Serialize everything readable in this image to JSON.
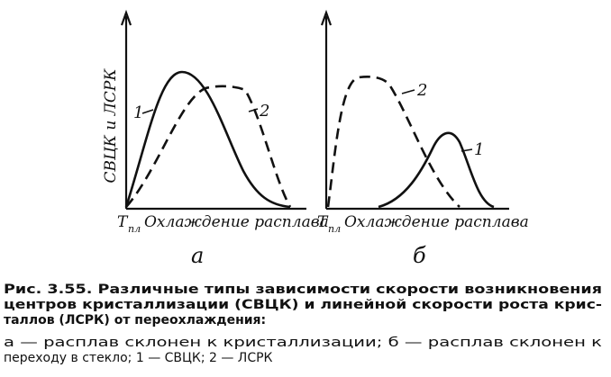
{
  "panels": [
    {
      "y_label": "СВЦК и ЛСРК",
      "x_symbol": "T",
      "x_subscript": "пл",
      "x_label": "Охлаждение расплава",
      "letter": "а",
      "curve_labels": [
        "1",
        "2"
      ]
    },
    {
      "x_symbol": "T",
      "x_subscript": "пл",
      "x_label": "Охлаждение расплава",
      "letter": "б",
      "curve_labels": [
        "2",
        "1"
      ]
    }
  ],
  "caption": {
    "title_lines": [
      "Рис. 3.55. Различные типы зависимости скорости возникновения",
      "центров кристаллизации (СВЦК) и линейной скорости роста крис-",
      "таллов (ЛСРК) от переохлаждения:"
    ],
    "legend_lines": [
      "а — расплав склонен к кристаллизации; б — расплав склонен к",
      "переходу в стекло; 1 — СВЦК; 2 — ЛСРК"
    ]
  }
}
